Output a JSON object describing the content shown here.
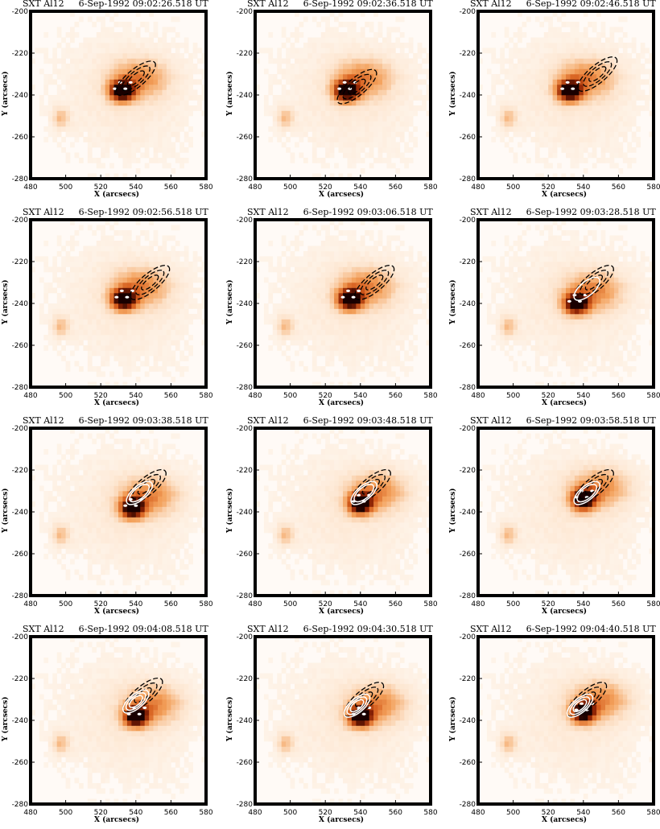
{
  "chart_data": {
    "type": "heatmap",
    "instrument": "SXT Al12",
    "date": "6-Sep-1992",
    "xlabel": "X (arcsecs)",
    "ylabel": "Y (arcsecs)",
    "xlim": [
      480,
      580
    ],
    "ylim": [
      -280,
      -200
    ],
    "xticks": [
      "480",
      "500",
      "520",
      "540",
      "560",
      "580"
    ],
    "yticks": [
      "-200",
      "-220",
      "-240",
      "-260",
      "-280"
    ],
    "colormap": "white-orange-black",
    "contour_colors": {
      "dashed": "#000000",
      "solid": "#ffffff"
    },
    "panels": [
      {
        "time": "09:02:26.518 UT",
        "peak": [
          532,
          -238
        ],
        "contour_center": [
          540,
          -232
        ],
        "solid_contours": 0
      },
      {
        "time": "09:02:36.518 UT",
        "peak": [
          532,
          -238
        ],
        "contour_center": [
          538,
          -236
        ],
        "solid_contours": 0
      },
      {
        "time": "09:02:46.518 UT",
        "peak": [
          532,
          -238
        ],
        "contour_center": [
          548,
          -230
        ],
        "solid_contours": 0
      },
      {
        "time": "09:02:56.518 UT",
        "peak": [
          533,
          -238
        ],
        "contour_center": [
          548,
          -230
        ],
        "solid_contours": 0
      },
      {
        "time": "09:03:06.518 UT",
        "peak": [
          534,
          -238
        ],
        "contour_center": [
          548,
          -230
        ],
        "solid_contours": 0
      },
      {
        "time": "09:03:28.518 UT",
        "peak": [
          536,
          -240
        ],
        "contour_center": [
          546,
          -230
        ],
        "solid_contours": 1
      },
      {
        "time": "09:03:38.518 UT",
        "peak": [
          538,
          -238
        ],
        "contour_center": [
          546,
          -228
        ],
        "solid_contours": 2
      },
      {
        "time": "09:03:48.518 UT",
        "peak": [
          540,
          -236
        ],
        "contour_center": [
          546,
          -228
        ],
        "solid_contours": 2
      },
      {
        "time": "09:03:58.518 UT",
        "peak": [
          540,
          -234
        ],
        "contour_center": [
          546,
          -228
        ],
        "solid_contours": 2
      },
      {
        "time": "09:04:08.518 UT",
        "peak": [
          540,
          -238
        ],
        "contour_center": [
          544,
          -228
        ],
        "solid_contours": 3
      },
      {
        "time": "09:04:30.518 UT",
        "peak": [
          540,
          -238
        ],
        "contour_center": [
          542,
          -230
        ],
        "solid_contours": 3
      },
      {
        "time": "09:04:40.518 UT",
        "peak": [
          540,
          -236
        ],
        "contour_center": [
          542,
          -230
        ],
        "solid_contours": 3
      }
    ]
  }
}
